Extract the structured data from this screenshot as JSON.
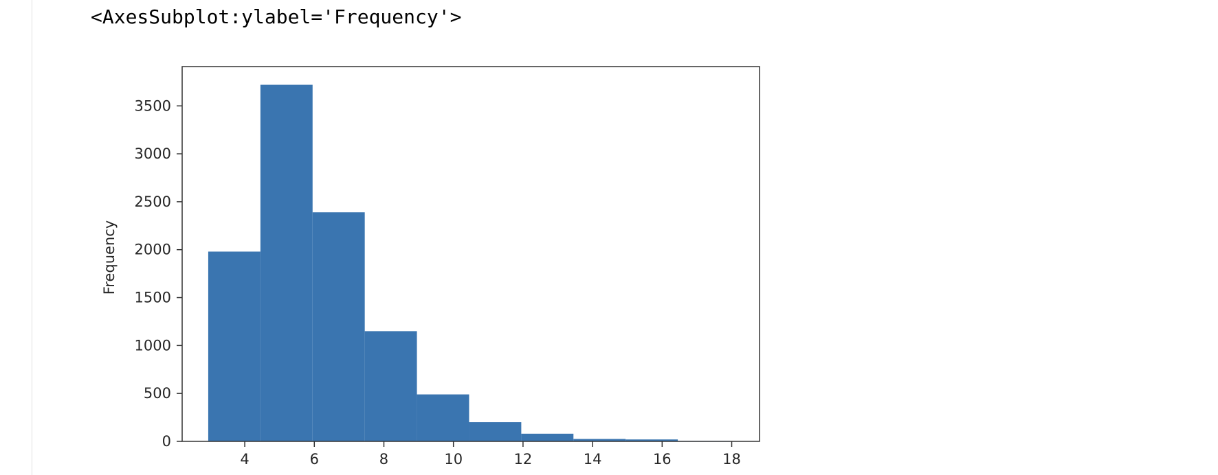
{
  "output": {
    "repr": "<AxesSubplot:ylabel='Frequency'>"
  },
  "chart_data": {
    "type": "bar",
    "variant": "histogram",
    "ylabel": "Frequency",
    "xlabel": "",
    "title": "",
    "bins": [
      {
        "x0": 2.95,
        "x1": 4.45,
        "value": 1980
      },
      {
        "x0": 4.45,
        "x1": 5.95,
        "value": 3720
      },
      {
        "x0": 5.95,
        "x1": 7.45,
        "value": 2390
      },
      {
        "x0": 7.45,
        "x1": 8.95,
        "value": 1150
      },
      {
        "x0": 8.95,
        "x1": 10.45,
        "value": 490
      },
      {
        "x0": 10.45,
        "x1": 11.95,
        "value": 200
      },
      {
        "x0": 11.95,
        "x1": 13.45,
        "value": 80
      },
      {
        "x0": 13.45,
        "x1": 14.95,
        "value": 25
      },
      {
        "x0": 14.95,
        "x1": 16.45,
        "value": 20
      },
      {
        "x0": 16.45,
        "x1": 17.95,
        "value": 5
      }
    ],
    "xlim": [
      2.2,
      18.8
    ],
    "ylim": [
      0,
      3910
    ],
    "xticks": [
      4,
      6,
      8,
      10,
      12,
      14,
      16,
      18
    ],
    "yticks": [
      0,
      500,
      1000,
      1500,
      2000,
      2500,
      3000,
      3500
    ],
    "bar_color": "#3a75b0",
    "grid": false,
    "legend": "none"
  }
}
